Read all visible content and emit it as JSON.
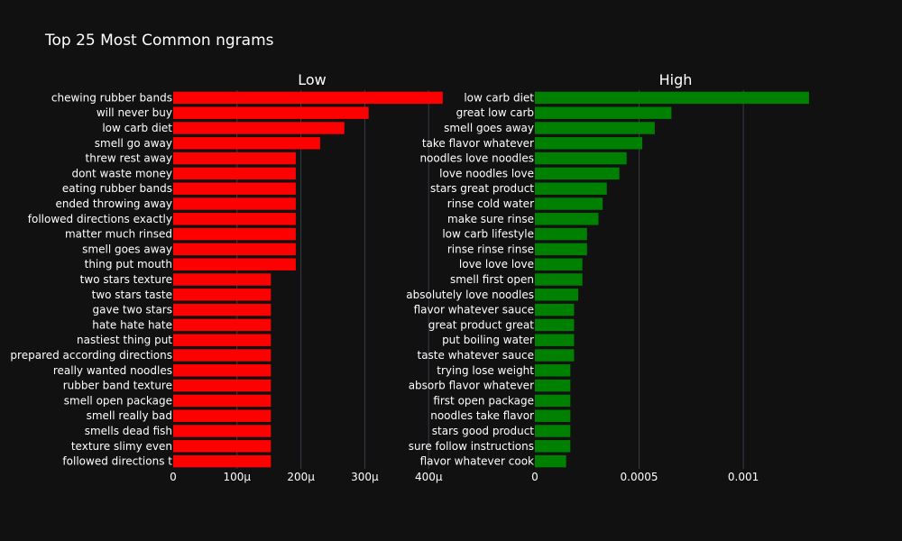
{
  "chart_data": {
    "type": "bar",
    "orientation": "horizontal",
    "title": "Top 25 Most Common ngrams",
    "grid": true,
    "panels": [
      {
        "name": "Low",
        "color": "#ff0000",
        "xlim": [
          0,
          0.000435
        ],
        "xticks": [
          0,
          0.0001,
          0.0002,
          0.0003,
          0.0004
        ],
        "xtick_labels": [
          "0",
          "100μ",
          "200μ",
          "300μ",
          "400μ"
        ],
        "categories": [
          "chewing rubber bands",
          "will never buy",
          "low carb diet",
          "smell go away",
          "threw rest away",
          "dont waste money",
          "eating rubber bands",
          "ended throwing away",
          "followed directions exactly",
          "matter much rinsed",
          "smell goes away",
          "thing put mouth",
          "two stars texture",
          "two stars taste",
          "gave two stars",
          "hate hate hate",
          "nastiest thing put",
          "prepared according directions",
          "really wanted noodles",
          "rubber band texture",
          "smell open package",
          "smell really bad",
          "smells dead fish",
          "texture slimy even",
          "followed directions t"
        ],
        "values": [
          0.000422,
          0.000306,
          0.000268,
          0.00023,
          0.000192,
          0.000192,
          0.000192,
          0.000192,
          0.000192,
          0.000192,
          0.000192,
          0.000192,
          0.000153,
          0.000153,
          0.000153,
          0.000153,
          0.000153,
          0.000153,
          0.000153,
          0.000153,
          0.000153,
          0.000153,
          0.000153,
          0.000153,
          0.000153
        ]
      },
      {
        "name": "High",
        "color": "#008000",
        "xlim": [
          0,
          0.00135
        ],
        "xticks": [
          0,
          0.0005,
          0.001
        ],
        "xtick_labels": [
          "0",
          "0.0005",
          "0.001"
        ],
        "categories": [
          "low carb diet",
          "great low carb",
          "smell goes away",
          "take flavor whatever",
          "noodles love noodles",
          "love noodles love",
          "stars great product",
          "rinse cold water",
          "make sure rinse",
          "low carb lifestyle",
          "rinse rinse rinse",
          "love love love",
          "smell first open",
          "absolutely love noodles",
          "flavor whatever sauce",
          "great product great",
          "put boiling water",
          "taste whatever sauce",
          "trying lose weight",
          "absorb flavor whatever",
          "first open package",
          "noodles take flavor",
          "stars good product",
          "sure follow instructions",
          "flavor whatever cook"
        ],
        "values": [
          0.001315,
          0.000655,
          0.000575,
          0.000515,
          0.00044,
          0.000405,
          0.000345,
          0.000325,
          0.000305,
          0.00025,
          0.00025,
          0.000228,
          0.000228,
          0.000208,
          0.000188,
          0.000188,
          0.000188,
          0.000188,
          0.00017,
          0.00017,
          0.00017,
          0.00017,
          0.00017,
          0.00017,
          0.00015
        ]
      }
    ]
  }
}
